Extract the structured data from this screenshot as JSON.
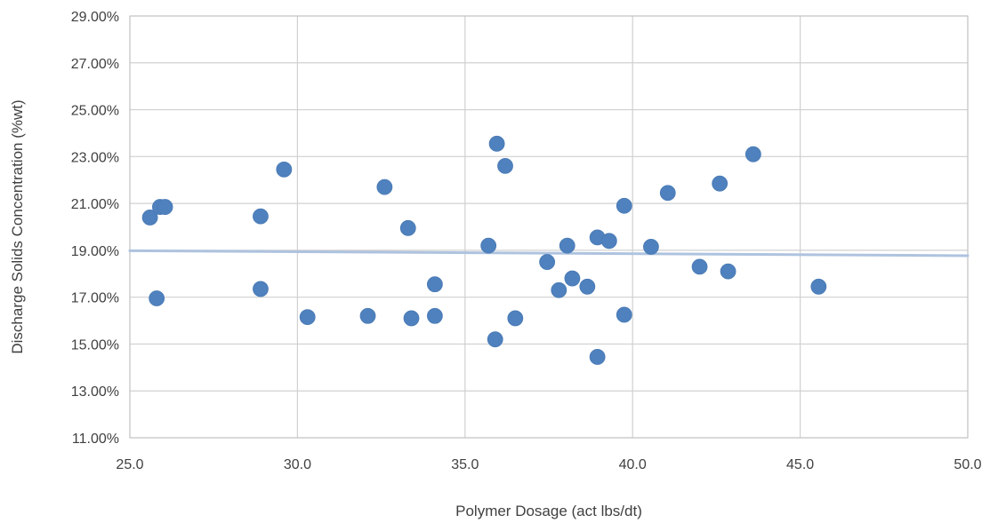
{
  "chart_data": {
    "type": "scatter",
    "xlabel": "Polymer Dosage (act lbs/dt)",
    "ylabel": "Discharge Solids Concentration (%wt)",
    "xlim": [
      25.0,
      50.0
    ],
    "ylim": [
      11.0,
      29.0
    ],
    "x_ticks": [
      "25.0",
      "30.0",
      "35.0",
      "40.0",
      "45.0",
      "50.0"
    ],
    "y_ticks": [
      "11.00%",
      "13.00%",
      "15.00%",
      "17.00%",
      "19.00%",
      "21.00%",
      "23.00%",
      "25.00%",
      "27.00%",
      "29.00%"
    ],
    "grid": true,
    "marker_color": "#4e81bd",
    "trendline_color": "#aec3df",
    "trendline": {
      "type": "linear",
      "x": [
        25.0,
        50.0
      ],
      "y": [
        18.98,
        18.77
      ]
    },
    "points": [
      {
        "x": 25.6,
        "y": 20.4
      },
      {
        "x": 25.8,
        "y": 16.95
      },
      {
        "x": 25.9,
        "y": 20.85
      },
      {
        "x": 26.05,
        "y": 20.85
      },
      {
        "x": 28.9,
        "y": 20.45
      },
      {
        "x": 28.9,
        "y": 17.35
      },
      {
        "x": 29.6,
        "y": 22.45
      },
      {
        "x": 30.3,
        "y": 16.15
      },
      {
        "x": 32.1,
        "y": 16.2
      },
      {
        "x": 32.6,
        "y": 21.7
      },
      {
        "x": 33.3,
        "y": 19.95
      },
      {
        "x": 33.4,
        "y": 16.1
      },
      {
        "x": 34.1,
        "y": 17.55
      },
      {
        "x": 34.1,
        "y": 16.2
      },
      {
        "x": 35.7,
        "y": 19.2
      },
      {
        "x": 35.9,
        "y": 15.2
      },
      {
        "x": 35.95,
        "y": 23.55
      },
      {
        "x": 36.2,
        "y": 22.6
      },
      {
        "x": 36.5,
        "y": 16.1
      },
      {
        "x": 37.45,
        "y": 18.5
      },
      {
        "x": 37.8,
        "y": 17.3
      },
      {
        "x": 38.05,
        "y": 19.2
      },
      {
        "x": 38.2,
        "y": 17.8
      },
      {
        "x": 38.65,
        "y": 17.45
      },
      {
        "x": 38.95,
        "y": 19.55
      },
      {
        "x": 38.95,
        "y": 14.45
      },
      {
        "x": 39.3,
        "y": 19.4
      },
      {
        "x": 39.75,
        "y": 20.9
      },
      {
        "x": 39.75,
        "y": 16.25
      },
      {
        "x": 40.55,
        "y": 19.15
      },
      {
        "x": 41.05,
        "y": 21.45
      },
      {
        "x": 42.0,
        "y": 18.3
      },
      {
        "x": 42.6,
        "y": 21.85
      },
      {
        "x": 42.85,
        "y": 18.1
      },
      {
        "x": 43.6,
        "y": 23.1
      },
      {
        "x": 45.55,
        "y": 17.45
      }
    ]
  }
}
